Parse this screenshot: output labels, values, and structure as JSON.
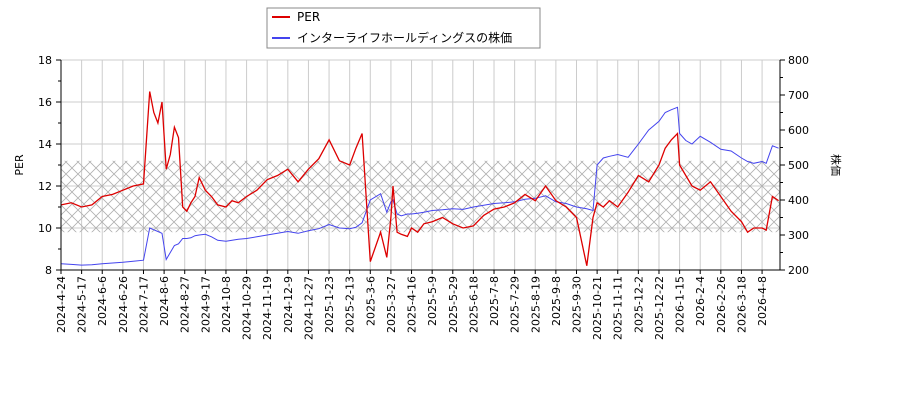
{
  "chart_data": {
    "type": "line",
    "title": "",
    "legend": {
      "position": "top-center",
      "entries": [
        {
          "label": "PER",
          "color": "#dd0000"
        },
        {
          "label": "インターライフホールディングスの株価",
          "color": "#4444ee"
        }
      ]
    },
    "x_axis": {
      "label": "",
      "tick_labels": [
        "2024-4-24",
        "2024-5-17",
        "2024-6-6",
        "2024-6-26",
        "2024-7-17",
        "2024-8-6",
        "2024-8-27",
        "2024-9-17",
        "2024-10-8",
        "2024-10-29",
        "2024-11-19",
        "2024-12-9",
        "2024-12-27",
        "2025-1-23",
        "2025-2-13",
        "2025-3-6",
        "2025-3-27",
        "2025-4-16",
        "2025-5-9",
        "2025-5-29",
        "2025-6-18",
        "2025-7-8",
        "2025-7-29",
        "2025-8-19",
        "2025-9-8",
        "2025-9-30",
        "2025-10-21",
        "2025-11-11",
        "2025-12-2",
        "2025-12-22",
        "2026-1-15",
        "2026-2-4",
        "2026-2-26",
        "2026-3-18",
        "2026-4-8"
      ]
    },
    "y_axis_left": {
      "label": "PER",
      "min": 8,
      "max": 18,
      "ticks": [
        8,
        10,
        12,
        14,
        16,
        18
      ]
    },
    "y_axis_right": {
      "label": "株価",
      "min": 200,
      "max": 800,
      "ticks": [
        200,
        300,
        400,
        500,
        600,
        700,
        800
      ]
    },
    "grid": true,
    "shaded_band": {
      "axis": "left",
      "from": 9.8,
      "to": 13.2,
      "pattern": "crosshatch"
    },
    "series": [
      {
        "name": "PER",
        "axis": "left",
        "color": "#dd0000",
        "x_index": [
          0,
          0.5,
          1,
          1.5,
          2,
          2.5,
          3,
          3.5,
          4,
          4.3,
          4.5,
          4.7,
          4.9,
          5.1,
          5.3,
          5.5,
          5.7,
          5.9,
          6.1,
          6.3,
          6.5,
          6.7,
          7,
          7.3,
          7.6,
          8,
          8.3,
          8.6,
          9,
          9.5,
          10,
          10.5,
          11,
          11.5,
          12,
          12.5,
          13,
          13.5,
          14,
          14.3,
          14.6,
          15,
          15.5,
          15.8,
          16,
          16.1,
          16.3,
          16.5,
          16.8,
          17,
          17.3,
          17.6,
          18,
          18.5,
          19,
          19.5,
          20,
          20.5,
          21,
          21.5,
          22,
          22.5,
          23,
          23.5,
          24,
          24.5,
          25,
          25.5,
          25.8,
          26,
          26.3,
          26.6,
          27,
          27.5,
          28,
          28.5,
          29,
          29.3,
          29.6,
          29.9,
          30,
          30.3,
          30.6,
          31,
          31.5,
          32,
          32.5,
          33,
          33.3,
          33.6,
          34,
          34.2,
          34.5,
          34.8
        ],
        "values": [
          11.1,
          11.2,
          11.0,
          11.1,
          11.5,
          11.6,
          11.8,
          12.0,
          12.1,
          16.5,
          15.5,
          15.0,
          16.0,
          12.8,
          13.5,
          14.8,
          14.3,
          11.0,
          10.8,
          11.2,
          11.5,
          12.4,
          11.8,
          11.5,
          11.1,
          11.0,
          11.3,
          11.2,
          11.5,
          11.8,
          12.3,
          12.5,
          12.8,
          12.2,
          12.8,
          13.3,
          14.2,
          13.2,
          13.0,
          13.8,
          14.5,
          8.4,
          9.8,
          8.6,
          10.5,
          12.0,
          9.8,
          9.7,
          9.6,
          10.0,
          9.8,
          10.2,
          10.3,
          10.5,
          10.2,
          10.0,
          10.1,
          10.6,
          10.9,
          11.0,
          11.2,
          11.6,
          11.3,
          12.0,
          11.3,
          11.0,
          10.5,
          8.2,
          10.5,
          11.2,
          11.0,
          11.3,
          11.0,
          11.7,
          12.5,
          12.2,
          13.0,
          13.8,
          14.2,
          14.5,
          13.0,
          12.5,
          12.0,
          11.8,
          12.2,
          11.5,
          10.8,
          10.3,
          9.8,
          10.0,
          10.0,
          9.9,
          11.5,
          11.3
        ]
      },
      {
        "name": "インターライフホールディングスの株価",
        "axis": "right",
        "color": "#4444ee",
        "x_index": [
          0,
          0.5,
          1,
          1.5,
          2,
          2.5,
          3,
          3.5,
          4,
          4.3,
          4.5,
          4.7,
          4.9,
          5.1,
          5.3,
          5.5,
          5.7,
          5.9,
          6.1,
          6.3,
          6.5,
          6.7,
          7,
          7.3,
          7.6,
          8,
          8.3,
          8.6,
          9,
          9.5,
          10,
          10.5,
          11,
          11.5,
          12,
          12.5,
          13,
          13.5,
          14,
          14.3,
          14.6,
          15,
          15.5,
          15.8,
          16,
          16.1,
          16.3,
          16.5,
          16.8,
          17,
          17.3,
          17.6,
          18,
          18.5,
          19,
          19.5,
          20,
          20.5,
          21,
          21.5,
          22,
          22.5,
          23,
          23.5,
          24,
          24.5,
          25,
          25.5,
          25.8,
          26,
          26.3,
          26.6,
          27,
          27.5,
          28,
          28.5,
          29,
          29.3,
          29.6,
          29.9,
          30,
          30.3,
          30.6,
          31,
          31.5,
          32,
          32.5,
          33,
          33.3,
          33.6,
          34,
          34.2,
          34.5,
          34.8
        ],
        "values": [
          218,
          216,
          214,
          215,
          218,
          220,
          222,
          225,
          228,
          320,
          315,
          310,
          305,
          230,
          250,
          270,
          275,
          290,
          290,
          292,
          298,
          300,
          302,
          295,
          285,
          282,
          285,
          288,
          290,
          295,
          300,
          305,
          310,
          305,
          312,
          318,
          330,
          320,
          318,
          322,
          335,
          400,
          418,
          365,
          395,
          400,
          360,
          355,
          360,
          360,
          362,
          365,
          370,
          372,
          375,
          373,
          380,
          385,
          390,
          392,
          395,
          402,
          405,
          412,
          395,
          390,
          380,
          375,
          370,
          500,
          520,
          525,
          530,
          522,
          560,
          600,
          625,
          650,
          658,
          665,
          590,
          570,
          560,
          582,
          565,
          545,
          540,
          520,
          510,
          505,
          510,
          505,
          555,
          548
        ]
      }
    ]
  }
}
